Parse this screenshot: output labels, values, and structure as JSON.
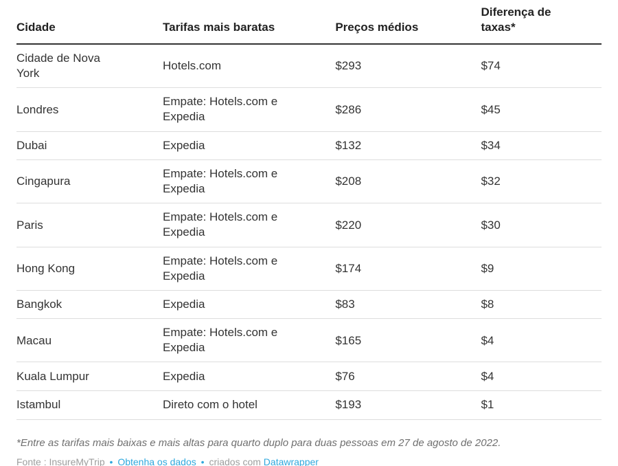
{
  "chart_data": {
    "type": "table",
    "columns": [
      "Cidade",
      "Tarifas mais baratas",
      "Preços médios",
      "Diferença de taxas*"
    ],
    "rows": [
      [
        "Cidade de Nova York",
        "Hotels.com",
        "$293",
        "$74"
      ],
      [
        "Londres",
        "Empate: Hotels.com e Expedia",
        "$286",
        "$45"
      ],
      [
        "Dubai",
        "Expedia",
        "$132",
        "$34"
      ],
      [
        "Cingapura",
        "Empate: Hotels.com e Expedia",
        "$208",
        "$32"
      ],
      [
        "Paris",
        "Empate: Hotels.com e Expedia",
        "$220",
        "$30"
      ],
      [
        "Hong Kong",
        "Empate: Hotels.com e Expedia",
        "$174",
        "$9"
      ],
      [
        "Bangkok",
        "Expedia",
        "$83",
        "$8"
      ],
      [
        "Macau",
        "Empate: Hotels.com e Expedia",
        "$165",
        "$4"
      ],
      [
        "Kuala Lumpur",
        "Expedia",
        "$76",
        "$4"
      ],
      [
        "Istambul",
        "Direto com o hotel",
        "$193",
        "$1"
      ]
    ],
    "values_numeric": {
      "precos_medios_usd": [
        293,
        286,
        132,
        208,
        220,
        174,
        83,
        165,
        76,
        193
      ],
      "diferenca_de_taxas_usd": [
        74,
        45,
        34,
        32,
        30,
        9,
        8,
        4,
        4,
        1
      ]
    }
  },
  "footer": {
    "footnote": "*Entre as tarifas mais baixas e mais altas para quarto duplo para duas pessoas em 27 de agosto de 2022.",
    "source_label": "Fonte : InsureMyTrip",
    "dot": "•",
    "get_data_link": "Obtenha os dados",
    "created_with_label": "criados com",
    "datawrapper_link": "Datawrapper"
  },
  "colors": {
    "link_blue": "#2fa8dd",
    "header_text": "#222222",
    "body_text": "#333333",
    "header_rule": "#333333",
    "row_rule": "#dddddd",
    "footnote_text": "#6f6f6f",
    "source_text": "#9d9d9d",
    "background": "#ffffff"
  }
}
